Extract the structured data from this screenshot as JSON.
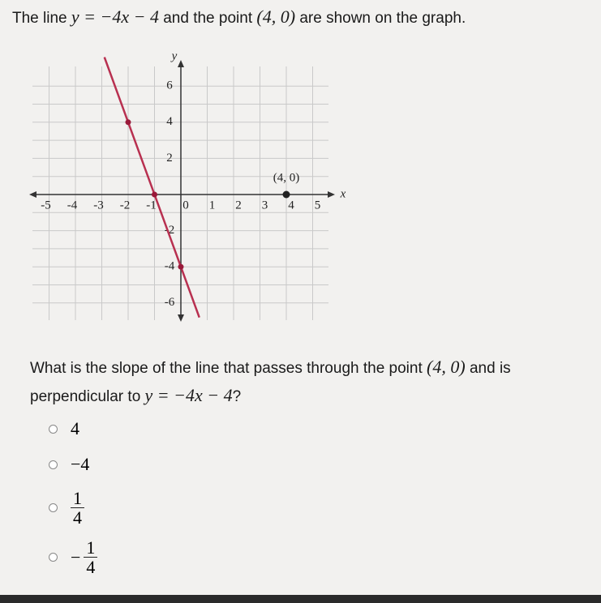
{
  "intro": [
    "The line ",
    "y = −4x − 4",
    " and the point ",
    "(4, 0)",
    " are shown on the graph."
  ],
  "graph": {
    "x_label": "x",
    "y_label": "y",
    "xticks": [
      -5,
      -4,
      -3,
      -2,
      -1,
      0,
      1,
      2,
      3,
      4,
      5
    ],
    "yticks": [
      -6,
      -4,
      -2,
      2,
      4,
      6
    ],
    "line": {
      "x": [
        -2,
        -1,
        0
      ],
      "y": [
        4,
        0,
        -4
      ]
    },
    "point": {
      "x": 4,
      "y": 0,
      "label": "(4, 0)"
    }
  },
  "question": [
    "What is the slope of the line that passes through the point ",
    "(4, 0)",
    " and is perpendicular to ",
    "y = −4x − 4",
    "?"
  ],
  "options": [
    {
      "text": "4"
    },
    {
      "text": "−4"
    },
    {
      "numerator": "1",
      "denominator": "4"
    },
    {
      "sign": "−",
      "numerator": "1",
      "denominator": "4"
    }
  ]
}
